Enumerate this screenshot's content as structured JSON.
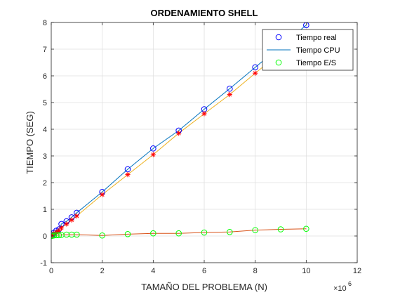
{
  "chart_data": {
    "type": "line",
    "title": "ORDENAMIENTO SHELL",
    "xlabel": "TAMAÑO DEL PROBLEMA (N)",
    "ylabel": "TIEMPO (SEG)",
    "x_exponent_label": "×10",
    "x_exponent": "6",
    "xlim": [
      0,
      12
    ],
    "ylim": [
      -1,
      8
    ],
    "xticks": [
      "0",
      "2",
      "4",
      "6",
      "8",
      "10",
      "12"
    ],
    "yticks": [
      "-1",
      "0",
      "1",
      "2",
      "3",
      "4",
      "5",
      "6",
      "7",
      "8"
    ],
    "grid": true,
    "legend_position": "top-right",
    "series": [
      {
        "name": "Tiempo real",
        "marker": "circle",
        "color": "#0000ff",
        "line_color": "#0072bd",
        "x": [
          0,
          0.05,
          0.1,
          0.2,
          0.3,
          0.4,
          0.6,
          0.8,
          1,
          2,
          3,
          4,
          5,
          6,
          7,
          8,
          10
        ],
        "values": [
          0,
          0.05,
          0.12,
          0.2,
          0.25,
          0.45,
          0.55,
          0.7,
          0.87,
          1.65,
          2.5,
          3.28,
          3.95,
          4.75,
          5.52,
          6.32,
          7.9
        ]
      },
      {
        "name": "Tiempo CPU",
        "marker": "star",
        "color": "#ff0000",
        "line_color": "#edb120",
        "x": [
          0,
          0.05,
          0.1,
          0.2,
          0.3,
          0.4,
          0.6,
          0.8,
          1,
          2,
          3,
          4,
          5,
          6,
          7,
          8,
          10
        ],
        "values": [
          0,
          0.03,
          0.08,
          0.14,
          0.2,
          0.3,
          0.45,
          0.6,
          0.75,
          1.55,
          2.3,
          3.05,
          3.85,
          4.58,
          5.3,
          6.1,
          7.65
        ]
      },
      {
        "name": "Tiempo E/S",
        "marker": "circle",
        "color": "#00ff00",
        "line_color": "#d95319",
        "x": [
          0,
          0.05,
          0.1,
          0.2,
          0.3,
          0.4,
          0.6,
          0.8,
          1,
          2,
          3,
          4,
          5,
          6,
          7,
          8,
          9,
          10
        ],
        "values": [
          0,
          0.01,
          0.02,
          0.03,
          0.03,
          0.04,
          0.05,
          0.05,
          0.05,
          0.02,
          0.07,
          0.1,
          0.1,
          0.13,
          0.15,
          0.22,
          0.25,
          0.27
        ]
      }
    ]
  }
}
